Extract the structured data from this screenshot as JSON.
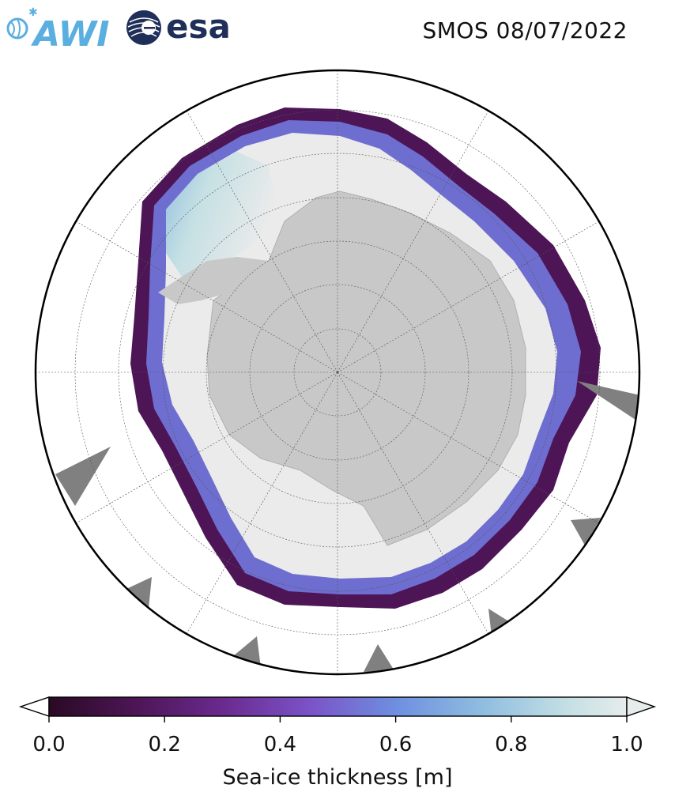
{
  "header": {
    "awi_logo": {
      "text": "AWI",
      "color": "#5aaee0"
    },
    "esa_logo": {
      "text": "esa",
      "color": "#1f2f5a"
    },
    "title": "SMOS 08/07/2022"
  },
  "map": {
    "projection": "south-polar-stereographic",
    "land_color": "#c8c8c8",
    "ocean_color": "#ffffff",
    "missing_data_color": "#808080",
    "gridlines": true
  },
  "colorbar": {
    "label": "Sea-ice thickness [m]",
    "ticks": [
      "0.0",
      "0.2",
      "0.4",
      "0.6",
      "0.8",
      "1.0"
    ],
    "range": [
      0.0,
      1.0
    ],
    "extend": "both",
    "stops": [
      {
        "value": 0.0,
        "color": "#2a0a24"
      },
      {
        "value": 0.15,
        "color": "#4d1556"
      },
      {
        "value": 0.3,
        "color": "#6a2a8e"
      },
      {
        "value": 0.45,
        "color": "#7b52c8"
      },
      {
        "value": 0.6,
        "color": "#6e8fe0"
      },
      {
        "value": 0.75,
        "color": "#8fbde0"
      },
      {
        "value": 0.9,
        "color": "#c5e0e4"
      },
      {
        "value": 1.0,
        "color": "#e6eceb"
      }
    ]
  }
}
